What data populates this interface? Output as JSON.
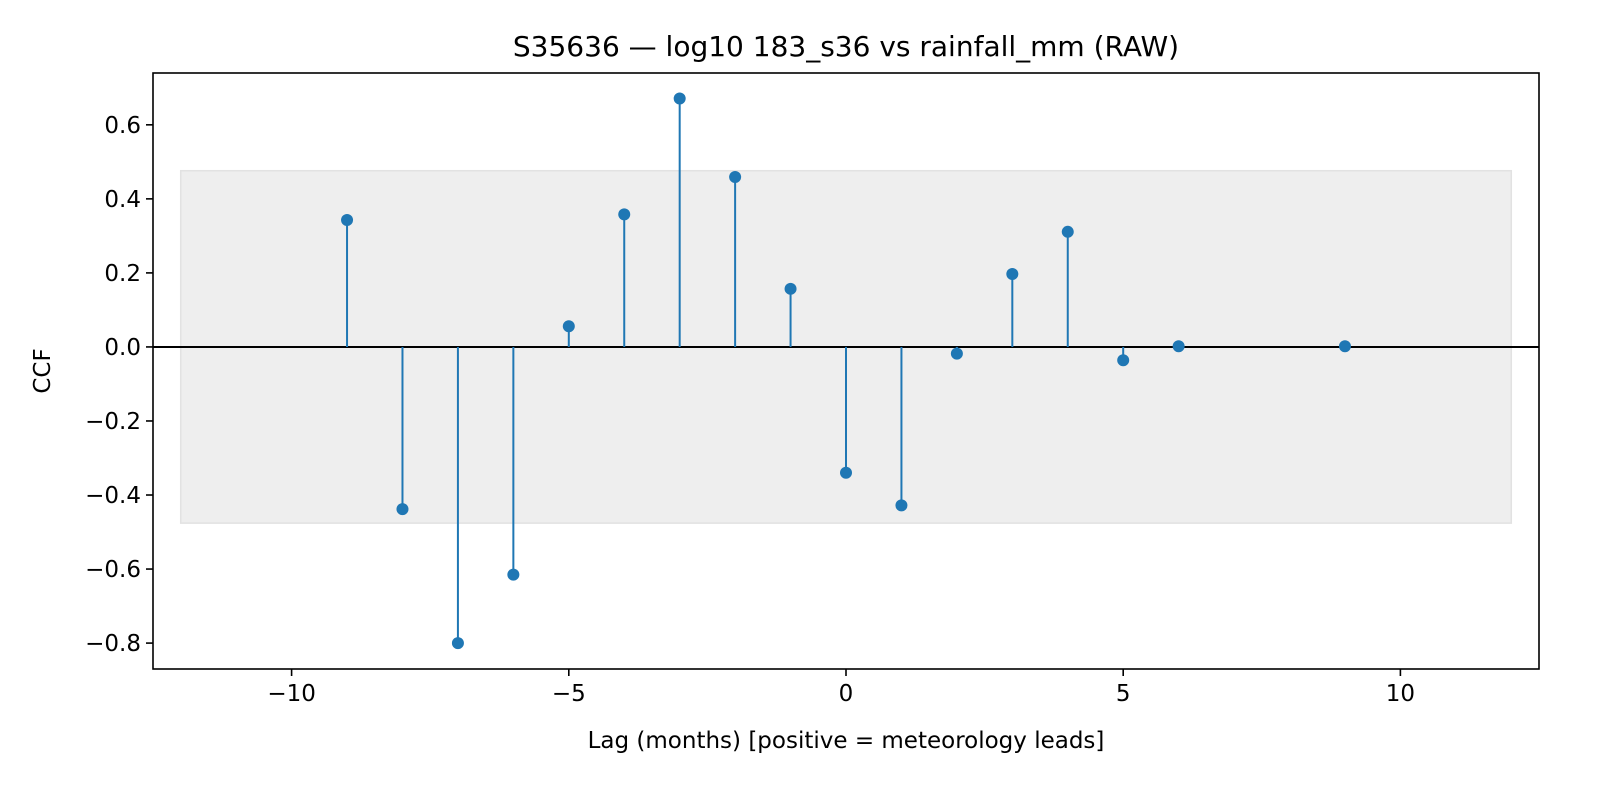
{
  "chart_data": {
    "type": "stem",
    "title": "S35636 — log10 183_s36 vs rainfall_mm (RAW)",
    "xlabel": "Lag (months)  [positive = meteorology leads]",
    "ylabel": "CCF",
    "xlim": [
      -12.5,
      12.5
    ],
    "ylim": [
      -0.87,
      0.74
    ],
    "xticks": [
      -10,
      -5,
      0,
      5,
      10
    ],
    "xtick_labels": [
      "−10",
      "−5",
      "0",
      "5",
      "10"
    ],
    "yticks": [
      -0.8,
      -0.6,
      -0.4,
      -0.2,
      0.0,
      0.2,
      0.4,
      0.6
    ],
    "ytick_labels": [
      "−0.8",
      "−0.6",
      "−0.4",
      "−0.2",
      "0.0",
      "0.2",
      "0.4",
      "0.6"
    ],
    "baseline": 0.0,
    "confidence_band": {
      "x_range": [
        -12,
        12
      ],
      "y_range": [
        -0.476,
        0.476
      ]
    },
    "grid": false,
    "legend": "none",
    "lags": [
      -9,
      -8,
      -7,
      -6,
      -5,
      -4,
      -3,
      -2,
      -1,
      0,
      1,
      2,
      3,
      4,
      5,
      6,
      9
    ],
    "values": [
      0.343,
      -0.438,
      -0.8,
      -0.615,
      0.056,
      0.358,
      0.671,
      0.459,
      0.157,
      -0.34,
      -0.428,
      -0.018,
      0.197,
      0.311,
      -0.036,
      0.002,
      0.002
    ],
    "colors": {
      "stem": "#1f77b4",
      "band": "#eeeeee",
      "baseline": "#000000"
    }
  }
}
